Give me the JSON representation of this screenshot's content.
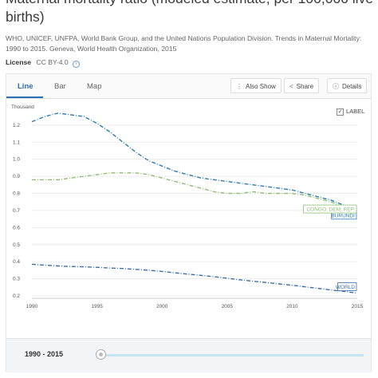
{
  "title": "Maternal mortality ratio (modeled estimate, per 100,000 live births)",
  "source": "WHO, UNICEF, UNFPA, World Bank Group, and the United Nations Population Division. Trends in Maternal Mortality: 1990 to 2015. Geneva, World Health Organization, 2015",
  "license": {
    "label": "License",
    "value": "CC BY-4.0",
    "icon": "info-icon"
  },
  "tabs": [
    {
      "label": "Line",
      "active": true
    },
    {
      "label": "Bar",
      "active": false
    },
    {
      "label": "Map",
      "active": false
    }
  ],
  "toolbar": {
    "also_show": "Also Show",
    "share": "Share",
    "details": "Details",
    "icons": {
      "also_show": "vertical-dots-icon",
      "share": "share-icon",
      "details": "info-icon"
    }
  },
  "label_toggle": {
    "label": "LABEL",
    "checked": true
  },
  "year_range": "1990 - 2015",
  "colors": {
    "accent": "#2a6fb0",
    "world": "#3a6fa8",
    "burundi": "#2e7db5",
    "congo": "#8fbf73"
  },
  "chart_data": {
    "type": "line",
    "unit_label": "Thousand",
    "x": [
      1990,
      1991,
      1992,
      1993,
      1994,
      1995,
      1996,
      1997,
      1998,
      1999,
      2000,
      2001,
      2002,
      2003,
      2004,
      2005,
      2006,
      2007,
      2008,
      2009,
      2010,
      2011,
      2012,
      2013,
      2014,
      2015
    ],
    "xticks": [
      "1990",
      "1995",
      "2000",
      "2005",
      "2010",
      "2015"
    ],
    "yticks": [
      "0.2",
      "0.3",
      "0.4",
      "0.5",
      "0.6",
      "0.7",
      "0.8",
      "0.9",
      "1.0",
      "1.1",
      "1.2"
    ],
    "ylim": [
      0.2,
      1.26
    ],
    "grid": "horizontal",
    "series": [
      {
        "name": "BURUNDI",
        "color": "#2e7db5",
        "values": [
          1.22,
          1.25,
          1.27,
          1.26,
          1.25,
          1.21,
          1.16,
          1.1,
          1.04,
          0.99,
          0.96,
          0.93,
          0.91,
          0.89,
          0.88,
          0.87,
          0.86,
          0.85,
          0.84,
          0.83,
          0.82,
          0.8,
          0.78,
          0.76,
          0.73,
          0.71
        ]
      },
      {
        "name": "CONGO, DEM. REP.",
        "color": "#8fbf73",
        "values": [
          0.88,
          0.88,
          0.88,
          0.89,
          0.9,
          0.91,
          0.92,
          0.92,
          0.92,
          0.91,
          0.89,
          0.87,
          0.85,
          0.83,
          0.81,
          0.8,
          0.8,
          0.81,
          0.8,
          0.8,
          0.8,
          0.79,
          0.77,
          0.75,
          0.72,
          0.69
        ]
      },
      {
        "name": "WORLD",
        "color": "#3a6fa8",
        "values": [
          0.385,
          0.38,
          0.375,
          0.372,
          0.37,
          0.367,
          0.363,
          0.36,
          0.355,
          0.35,
          0.343,
          0.335,
          0.327,
          0.32,
          0.312,
          0.303,
          0.294,
          0.286,
          0.278,
          0.27,
          0.262,
          0.253,
          0.244,
          0.234,
          0.226,
          0.216
        ]
      }
    ]
  }
}
